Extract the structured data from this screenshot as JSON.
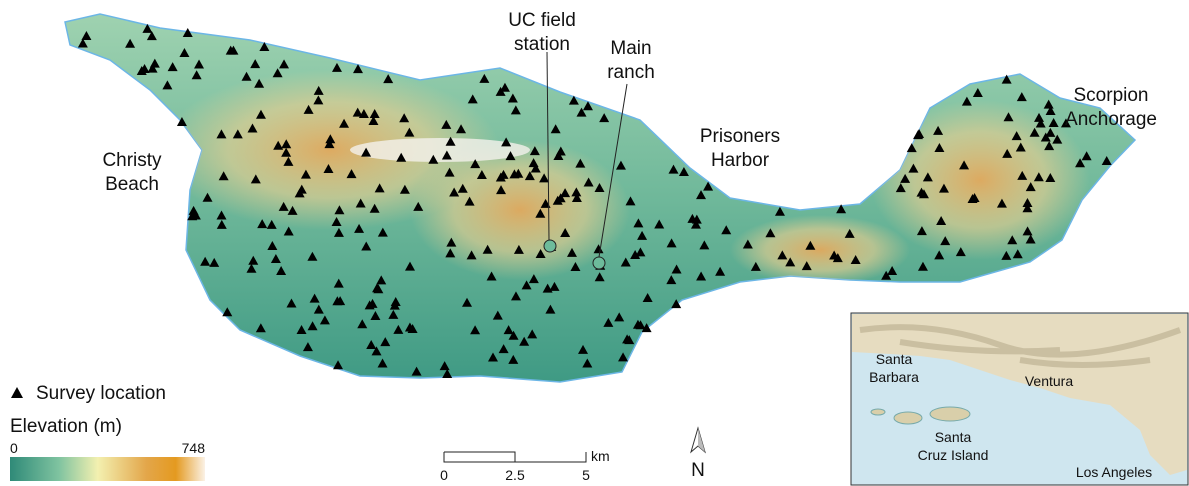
{
  "places": [
    {
      "lines": [
        "UC field",
        "station"
      ]
    },
    {
      "lines": [
        "Main",
        "ranch"
      ]
    },
    {
      "lines": [
        "Prisoners",
        "Harbor"
      ]
    },
    {
      "lines": [
        "Christy",
        "Beach"
      ]
    },
    {
      "lines": [
        "Scorpion",
        "Anchorage"
      ]
    }
  ],
  "legend": {
    "marker": "Survey location",
    "elevation_title": "Elevation (m)",
    "elevation_min": 0,
    "elevation_max": 748
  },
  "scale_bar": {
    "ticks": [
      0,
      2.5,
      5
    ],
    "unit": "km"
  },
  "north": "N",
  "inset": {
    "places": [
      {
        "lines": [
          "Santa",
          "Barbara"
        ]
      },
      {
        "lines": [
          "Ventura"
        ]
      },
      {
        "lines": [
          "Santa",
          "Cruz Island"
        ]
      },
      {
        "lines": [
          "Los Angeles"
        ]
      }
    ]
  }
}
